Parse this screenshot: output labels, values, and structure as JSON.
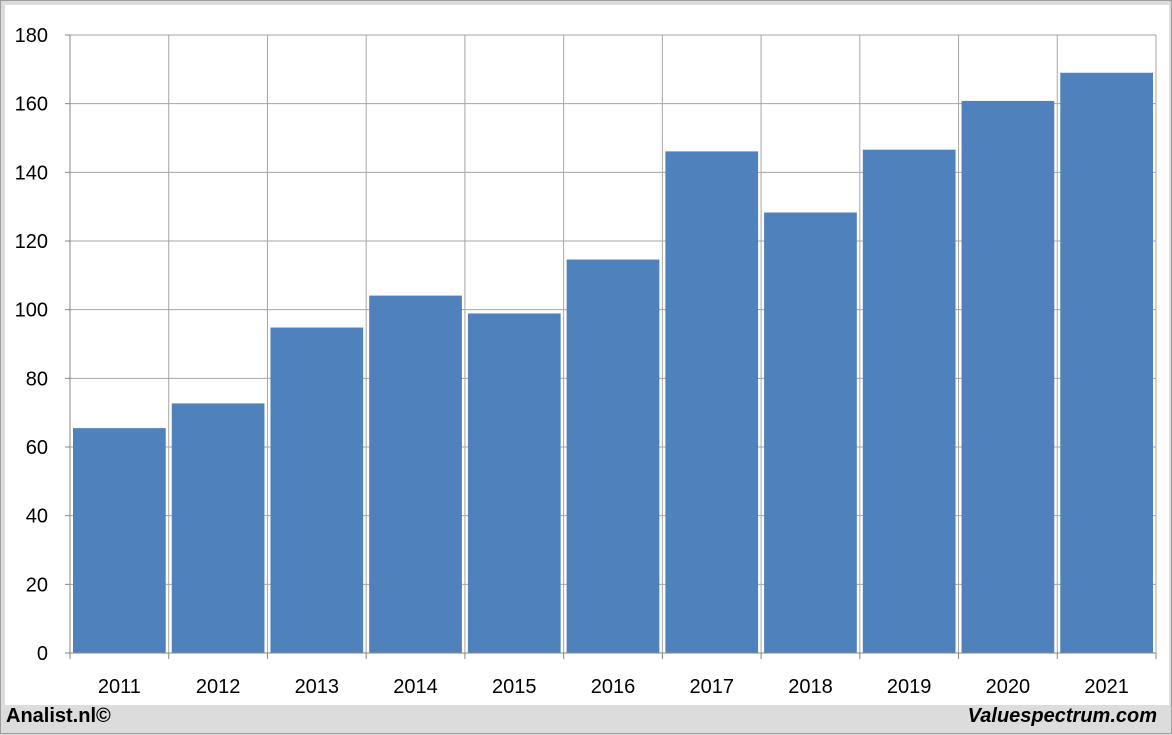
{
  "chart_data": {
    "type": "bar",
    "categories": [
      "2011",
      "2012",
      "2013",
      "2014",
      "2015",
      "2016",
      "2017",
      "2018",
      "2019",
      "2020",
      "2021"
    ],
    "values": [
      65.5,
      72.7,
      94.8,
      104.1,
      98.9,
      114.6,
      146.1,
      128.3,
      146.6,
      160.8,
      169.0
    ],
    "ylim": [
      0,
      180
    ],
    "yticks": [
      0,
      20,
      40,
      60,
      80,
      100,
      120,
      140,
      160,
      180
    ],
    "grid": true,
    "bar_color": "#4f81bd",
    "title": "",
    "xlabel": "",
    "ylabel": ""
  },
  "footer": {
    "left": "Analist.nl©",
    "right": "Valuespectrum.com"
  }
}
